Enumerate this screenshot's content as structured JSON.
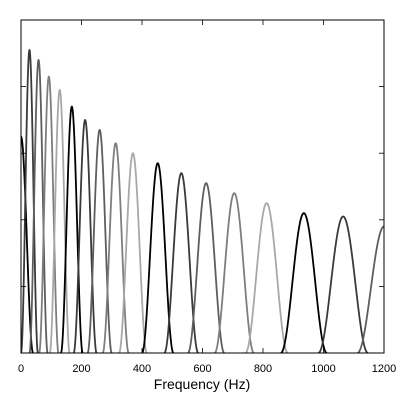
{
  "chart_data": {
    "type": "line",
    "title": "",
    "xlabel": "Frequency (Hz)",
    "ylabel": "",
    "xlim": [
      0,
      1200
    ],
    "ylim": [
      0,
      1
    ],
    "xticks": [
      0,
      200,
      400,
      600,
      800,
      1000,
      1200
    ],
    "xtick_labels": [
      "0",
      "200",
      "400",
      "600",
      "800",
      "1000",
      "1200"
    ],
    "yticks": [
      0,
      0.2,
      0.4,
      0.6,
      0.8,
      1.0
    ],
    "ytick_labels": [],
    "grid": false,
    "legend": "none",
    "series_style": "raised-cosine filter responses (filter bank), alternating grey shades",
    "series": [
      {
        "center": 0,
        "half_width": 40,
        "peak": 0.65,
        "color": "#000000"
      },
      {
        "center": 28,
        "half_width": 28,
        "peak": 0.91,
        "color": "#3a3a3a"
      },
      {
        "center": 58,
        "half_width": 30,
        "peak": 0.88,
        "color": "#5e5e5e"
      },
      {
        "center": 92,
        "half_width": 32,
        "peak": 0.83,
        "color": "#7e7e7e"
      },
      {
        "center": 128,
        "half_width": 33,
        "peak": 0.79,
        "color": "#a8a8a8"
      },
      {
        "center": 168,
        "half_width": 36,
        "peak": 0.74,
        "color": "#000000"
      },
      {
        "center": 212,
        "half_width": 38,
        "peak": 0.7,
        "color": "#3a3a3a"
      },
      {
        "center": 260,
        "half_width": 40,
        "peak": 0.67,
        "color": "#5e5e5e"
      },
      {
        "center": 313,
        "half_width": 43,
        "peak": 0.63,
        "color": "#7e7e7e"
      },
      {
        "center": 370,
        "half_width": 46,
        "peak": 0.6,
        "color": "#a8a8a8"
      },
      {
        "center": 452,
        "half_width": 52,
        "peak": 0.57,
        "color": "#000000"
      },
      {
        "center": 530,
        "half_width": 56,
        "peak": 0.54,
        "color": "#3a3a3a"
      },
      {
        "center": 612,
        "half_width": 60,
        "peak": 0.51,
        "color": "#5e5e5e"
      },
      {
        "center": 705,
        "half_width": 65,
        "peak": 0.48,
        "color": "#7e7e7e"
      },
      {
        "center": 812,
        "half_width": 70,
        "peak": 0.45,
        "color": "#a8a8a8"
      },
      {
        "center": 935,
        "half_width": 76,
        "peak": 0.42,
        "color": "#000000"
      },
      {
        "center": 1065,
        "half_width": 82,
        "peak": 0.41,
        "color": "#3a3a3a"
      },
      {
        "center": 1200,
        "half_width": 88,
        "peak": 0.38,
        "color": "#5e5e5e"
      }
    ]
  }
}
